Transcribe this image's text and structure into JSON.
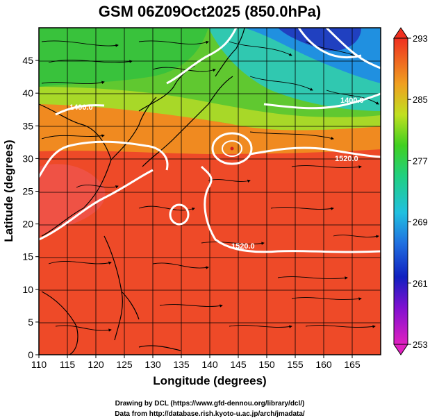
{
  "title": "GSM 06Z09Oct2025 (850.0hPa)",
  "xlabel": "Longitude (degrees)",
  "ylabel": "Latitude  (degrees)",
  "credit_line1": "Drawing by DCL (https://www.gfd-dennou.org/library/dcl/)",
  "credit_line2": "Data from http://database.rish.kyoto-u.ac.jp/arch/jmadata/",
  "chart_data": {
    "type": "heatmap",
    "xlim": [
      110,
      170
    ],
    "ylim": [
      0,
      50
    ],
    "x_ticks": [
      "110",
      "115",
      "120",
      "125",
      "130",
      "135",
      "140",
      "145",
      "150",
      "155",
      "160",
      "165"
    ],
    "y_ticks": [
      "0",
      "5",
      "10",
      "15",
      "20",
      "25",
      "30",
      "35",
      "40",
      "45"
    ],
    "grid": true,
    "colorbar": {
      "range": [
        253,
        293
      ],
      "ticks": [
        "253",
        "261",
        "269",
        "277",
        "285",
        "293"
      ]
    },
    "contour_labels": [
      "1400.0",
      "1400.0",
      "1520.0",
      "1520.0"
    ]
  }
}
